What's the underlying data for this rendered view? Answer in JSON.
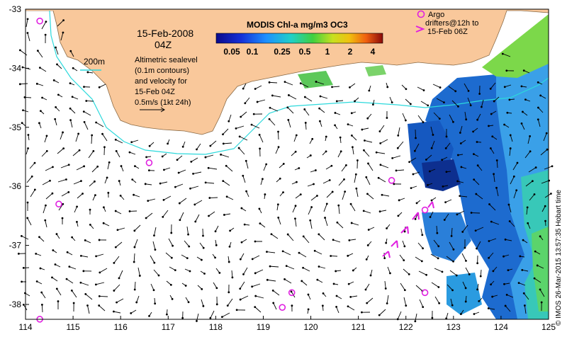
{
  "map": {
    "date_title": "15-Feb-2008",
    "time_title": "04Z",
    "colorbar_title": "MODIS Chl-a mg/m3 OC3",
    "colorbar_ticks": [
      "0.05",
      "0.1",
      "0.25",
      "0.5",
      "1",
      "2",
      "4"
    ],
    "depth_label": "200m",
    "sealevel_note": [
      "Altimetric sealevel",
      "(0.1m contours)",
      "and velocity for",
      "15-Feb 04Z"
    ],
    "scale_note": "0.5m/s (1kt 24h)",
    "argo_note": [
      "Argo",
      "drifters@12h to",
      "15-Feb 06Z"
    ],
    "credit": "© IMOS 26-Mar-2015 13:57:35 Hobart time",
    "x_ticks": [
      "114",
      "115",
      "116",
      "117",
      "118",
      "119",
      "120",
      "121",
      "122",
      "123",
      "124",
      "125"
    ],
    "y_ticks": [
      "-33",
      "-34",
      "-35",
      "-36",
      "-37",
      "-38"
    ],
    "colors": {
      "land": "#f9c89b",
      "contour": "#2cd9dc",
      "argo": "#e020e0",
      "arrow": "#000000"
    },
    "argo_floats_lonlat": [
      [
        114.3,
        -33.2
      ],
      [
        116.6,
        -35.6
      ],
      [
        114.7,
        -36.3
      ],
      [
        121.7,
        -35.9
      ],
      [
        122.4,
        -36.4
      ],
      [
        119.6,
        -37.8
      ],
      [
        119.4,
        -38.05
      ],
      [
        122.4,
        -37.8
      ],
      [
        114.3,
        -38.25
      ]
    ]
  }
}
